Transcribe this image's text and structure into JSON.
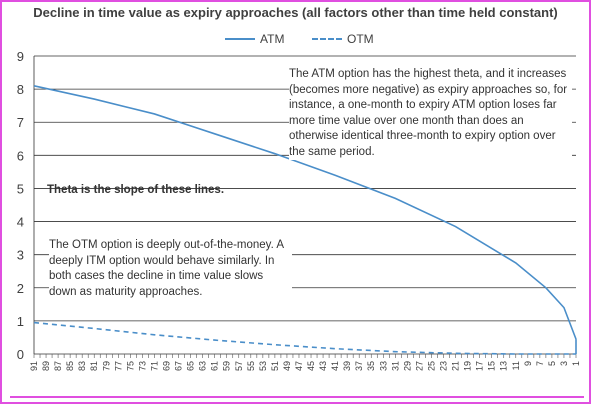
{
  "chart_data": {
    "type": "line",
    "title": "Decline in time value as expiry approaches (all factors other than time held constant)",
    "xlabel": "",
    "ylabel": "",
    "ylim": [
      0,
      9
    ],
    "yticks": [
      0,
      1,
      2,
      3,
      4,
      5,
      6,
      7,
      8,
      9
    ],
    "x_ticks": [
      "91",
      "89",
      "87",
      "85",
      "83",
      "81",
      "79",
      "77",
      "75",
      "73",
      "71",
      "69",
      "67",
      "65",
      "63",
      "61",
      "59",
      "57",
      "55",
      "53",
      "51",
      "49",
      "47",
      "45",
      "43",
      "41",
      "39",
      "37",
      "35",
      "33",
      "31",
      "29",
      "27",
      "25",
      "23",
      "21",
      "19",
      "17",
      "15",
      "13",
      "11",
      "9",
      "7",
      "5",
      "3",
      "1"
    ],
    "grid": "horizontal",
    "legend_position": "top-center",
    "series": [
      {
        "name": "ATM",
        "style": "solid",
        "x": [
          91,
          81,
          71,
          61,
          51,
          41,
          31,
          21,
          11,
          6,
          3,
          1
        ],
        "y": [
          8.1,
          7.7,
          7.25,
          6.65,
          6.05,
          5.4,
          4.7,
          3.85,
          2.75,
          2.0,
          1.4,
          0.45
        ]
      },
      {
        "name": "OTM",
        "style": "dashed",
        "x": [
          91,
          81,
          71,
          61,
          51,
          41,
          31,
          21,
          11,
          1
        ],
        "y": [
          0.95,
          0.77,
          0.58,
          0.42,
          0.28,
          0.16,
          0.07,
          0.02,
          0.0,
          0.0
        ]
      }
    ],
    "annotations": [
      "The ATM option has the highest theta, and it increases (becomes more negative) as expiry approaches so, for instance, a one-month to expiry ATM option loses far more time value over one month than does an otherwise identical three-month to expiry option over the same period.",
      "Theta is the slope of these lines.",
      "The OTM option is deeply out-of-the-money. A deeply ITM option would behave similarly. In both cases the decline in time value slows down as maturity approaches."
    ]
  },
  "colors": {
    "line": "#4a8ec9",
    "gridline": "#333333",
    "frame": "#e04fe0",
    "text": "#404040"
  }
}
